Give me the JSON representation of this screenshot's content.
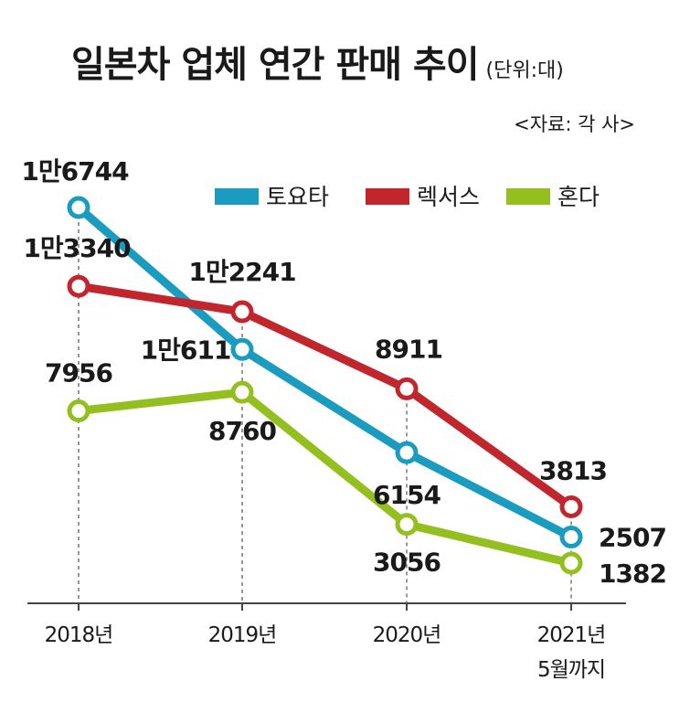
{
  "title": "일본차 업체 연간 판매 추이",
  "unit_note": "(단위:대)",
  "source": "<자료: 각 사>",
  "chart_data": {
    "type": "line",
    "categories": [
      "2018년",
      "2019년",
      "2020년",
      "2021년\n5월까지"
    ],
    "series": [
      {
        "name": "토요타",
        "color": "#1a9cc0",
        "values": [
          16744,
          10611,
          6154,
          2507
        ],
        "labels": [
          "1만6744",
          "1만611",
          "6154",
          "2507"
        ]
      },
      {
        "name": "렉서스",
        "color": "#c0262b",
        "values": [
          13340,
          12241,
          8911,
          3813
        ],
        "labels": [
          "1만3340",
          "1만2241",
          "8911",
          "3813"
        ]
      },
      {
        "name": "혼다",
        "color": "#93c01f",
        "values": [
          7956,
          8760,
          3056,
          1382
        ],
        "labels": [
          "7956",
          "8760",
          "3056",
          "1382"
        ]
      }
    ],
    "ylim": [
      -3300,
      19000
    ],
    "legend": "top-right",
    "grid": false
  }
}
